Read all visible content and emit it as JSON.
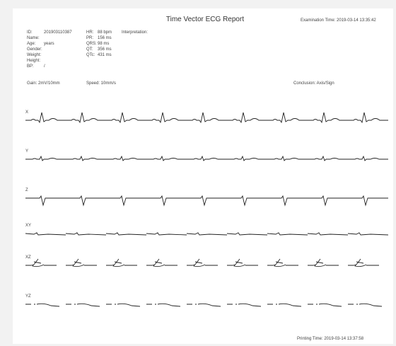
{
  "header": {
    "title": "Time Vector ECG Report",
    "exam_time": "Examination Time: 2019-03-14 13:35:42"
  },
  "patient": [
    {
      "label": "ID:",
      "value": "201903110387"
    },
    {
      "label": "Name:",
      "value": ""
    },
    {
      "label": "Age:",
      "value": "years"
    },
    {
      "label": "Gender:",
      "value": ""
    },
    {
      "label": "Weight:",
      "value": ""
    },
    {
      "label": "Height:",
      "value": ""
    },
    {
      "label": "BP:",
      "value": "/"
    }
  ],
  "measures": [
    {
      "label": "HR:",
      "value": "88 bpm"
    },
    {
      "label": "PR:",
      "value": "156 ms"
    },
    {
      "label": "QRS:",
      "value": "98 ms"
    },
    {
      "label": "QT:",
      "value": "356 ms"
    },
    {
      "label": "QTc:",
      "value": "431 ms"
    }
  ],
  "interpretation": "Interpretation:",
  "gain": "Gain: 2mV/10mm",
  "speed": "Speed: 10mm/s",
  "conclusion": "Conclusion: Axis/Sign",
  "leads": [
    "X",
    "Y",
    "Z",
    "XY",
    "XZ",
    "YZ"
  ],
  "footer": {
    "print_time": "Printing Time: 2019-03-14 13:37:58"
  }
}
